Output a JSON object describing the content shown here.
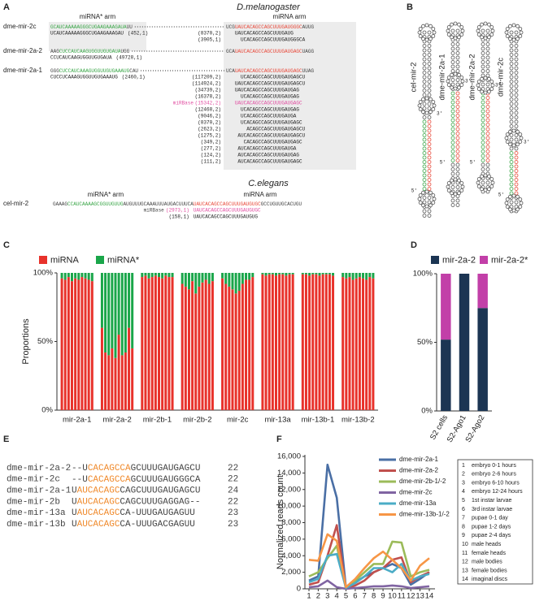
{
  "panel_a": {
    "panel_label": "A",
    "title": "D.melanogaster",
    "star_arm": "miRNA* arm",
    "mirna_arm": "miRNA arm",
    "hairpins": [
      {
        "name": "dme-mir-2c",
        "star": "GCAUCAAAAAGGGCUGAAGAAAGAUA",
        "star_tail": "UU",
        "mirna_head": "UCG",
        "mirna": "UAUCACAGCCAGCUUUGAUGGGC",
        "mirna_tail": "AUUG",
        "star_reads": [
          {
            "seq": "UCAUCAAAAAGGGCUGAAGAAAGAU",
            "count": "(452,1)"
          }
        ],
        "mirna_reads": [
          {
            "count": "(8370,2)",
            "seq": "UAUCACAGCCAGCUUUGAUG"
          },
          {
            "count": "(3905,1)",
            "seq": "UCACAGCCAGCUUUGAUGGGCA"
          }
        ]
      },
      {
        "name": "dme-mir-2a-2",
        "star_head": "AAG",
        "star": "CUCCAUCAAGUGGUUGUGAUA",
        "star_tail": "UGG",
        "mirna_head": "GCA",
        "mirna": "UAUCACAGCCAGCUUUGAUGAGC",
        "mirna_tail": "UAGG",
        "star_reads": [
          {
            "seq": "CCUCAUCAAGUGGUUGUGAUA",
            "count": "(49728,1)"
          }
        ]
      },
      {
        "name": "dme-mir-2a-1",
        "star_head": "GGG",
        "star": "CUCCAUCAAAGUGGUUGUGAAAUG",
        "star_tail": "CAU",
        "mirna_head": "UCA",
        "mirna": "UAUCACAGCCAGCUUUGAUGAGC",
        "mirna_tail": "UUAG",
        "star_reads": [
          {
            "seq": "CUCCUCAAAGUGGUUGUGAAAUG",
            "count": "(2460,1)"
          }
        ],
        "mirna_reads": [
          {
            "count": "(117209,2)",
            "seq": "UCACAGCCAGCUUUGAUGAGCU"
          },
          {
            "count": "(114924,2)",
            "seq": "UAUCACAGCCAGCUUUGAUGAGCU"
          },
          {
            "count": "(34739,2)",
            "seq": "UAUCACAGCCAGCUUUGAUGAG"
          },
          {
            "count": "(16378,2)",
            "seq": "UCACAGCCAGCUUUGAUGAG"
          },
          {
            "tag": "miRBase",
            "count": "(15342,2)",
            "seq": "UAUCACAGCCAGCUUUGAUGAGC"
          },
          {
            "count": "(12468,2)",
            "seq": "UCACAGCCAGCUUUGAUGAG"
          },
          {
            "count": "(9046,2)",
            "seq": "UCACAGCCAGCUUUGAUGA"
          },
          {
            "count": "(8370,2)",
            "seq": "UCACAGCCAGCUUUGAUGAGC"
          },
          {
            "count": "(2623,2)",
            "seq": "ACAGCCAGCUUUGAUGAGCU"
          },
          {
            "count": "(1275,2)",
            "seq": "AUCACAGCCAGCUUUGAUGAGCU"
          },
          {
            "count": "(349,2)",
            "seq": "CACAGCCAGCUUUGAUGAGC"
          },
          {
            "count": "(277,2)",
            "seq": "AUCACAGCCAGCUUUGAUGA"
          },
          {
            "count": "(124,2)",
            "seq": "AUCACAGCCAGCUUUGAUGAG"
          },
          {
            "count": "(111,2)",
            "seq": "AUCACAGCCAGCUUUGAUGAGC"
          }
        ]
      }
    ],
    "celegans": {
      "title": "C.elegans",
      "star_arm": "miRNA* arm",
      "mirna_arm": "miRNA arm",
      "name": "cel-mir-2",
      "head": "GAAAG",
      "star": "CCAUCAAAAGCGGUUGUUG",
      "loop": "AUGUUUGCAAAUUUAUGACUUUCA",
      "mirna": "UAUCACAGCCAGCUUUGAUGUGC",
      "tail": "GCCUGUUGCACUGU",
      "reads": [
        {
          "tag": "miRBase",
          "count": "(2973,1)",
          "seq": "UAUCACAGCCAGCUUUGAUGUGC"
        },
        {
          "count": "(158,1)",
          "seq": "UAUCACAGCCAGCUUUGAUGUG"
        }
      ]
    }
  },
  "panel_b": {
    "panel_label": "B",
    "structures": [
      {
        "name": "cel-mir-2",
        "five": "5'",
        "three": "3'"
      },
      {
        "name": "dme-mir-2a-1",
        "five": "5'",
        "three": "3'"
      },
      {
        "name": "dme-mir-2a-2",
        "five": "5'",
        "three": "3'"
      },
      {
        "name": "dme-mir-2c",
        "five": "5'",
        "three": "3'"
      }
    ]
  },
  "panel_e": {
    "panel_label": "E",
    "rows": [
      {
        "name": "dme-mir-2a-2",
        "lead": "--U",
        "core": "CACAGCCA",
        "tail": "GCUUUGAUGAGCU",
        "length": 22
      },
      {
        "name": "dme-mir-2c",
        "lead": "--U",
        "core": "CACAGCCA",
        "tail": "GCUUUGAUGGGCA",
        "length": 22
      },
      {
        "name": "dme-mir-2a-1",
        "lead": "U",
        "core": "AUCACAGC",
        "tail": "CAGCUUUGAUGAGCU",
        "length": 24
      },
      {
        "name": "dme-mir-2b",
        "lead": "U",
        "core": "AUCACAGC",
        "tail": "CAGCUUUGAGGAG--",
        "length": 22
      },
      {
        "name": "dme-mir-13a",
        "lead": "U",
        "core": "AUCACAGC",
        "tail": "CA-UUUGAUGAGUU",
        "length": 23
      },
      {
        "name": "dme-mir-13b",
        "lead": "U",
        "core": "AUCACAGC",
        "tail": "CA-UUUGACGAGUU",
        "length": 23
      }
    ]
  },
  "chart_data": [
    {
      "type": "stacked_bar",
      "panel_label": "C",
      "ylabel": "Proportions",
      "categories": [
        "mir-2a-1",
        "mir-2a-2",
        "mir-2b-1",
        "mir-2b-2",
        "mir-2c",
        "mir-13a",
        "mir-13b-1",
        "mir-13b-2"
      ],
      "series": [
        {
          "name": "miRNA",
          "color": "#e8322b",
          "values": [
            [
              96,
              95,
              97,
              94,
              96,
              95,
              97,
              96,
              95,
              94
            ],
            [
              60,
              42,
              40,
              45,
              38,
              55,
              40,
              42,
              60,
              45
            ],
            [
              97,
              98,
              96,
              97,
              98,
              97,
              96,
              98,
              97,
              97
            ],
            [
              92,
              90,
              88,
              94,
              85,
              90,
              93,
              95,
              92,
              94
            ],
            [
              96,
              92,
              90,
              88,
              85,
              87,
              92,
              95,
              95,
              97
            ],
            [
              99,
              98,
              99,
              99,
              98,
              99,
              99,
              98,
              99,
              99
            ],
            [
              99,
              99,
              98,
              99,
              99,
              98,
              99,
              99,
              99,
              98
            ],
            [
              97,
              96,
              97,
              95,
              96,
              97,
              96,
              95,
              97,
              96
            ]
          ]
        },
        {
          "name": "miRNA*",
          "color": "#1aa64a",
          "values": [
            [
              4,
              5,
              3,
              6,
              4,
              5,
              3,
              4,
              5,
              6
            ],
            [
              40,
              58,
              60,
              55,
              62,
              45,
              60,
              58,
              40,
              55
            ],
            [
              3,
              2,
              4,
              3,
              2,
              3,
              4,
              2,
              3,
              3
            ],
            [
              8,
              10,
              12,
              6,
              15,
              10,
              7,
              5,
              8,
              6
            ],
            [
              4,
              8,
              10,
              12,
              15,
              13,
              8,
              5,
              5,
              3
            ],
            [
              1,
              2,
              1,
              1,
              2,
              1,
              1,
              2,
              1,
              1
            ],
            [
              1,
              1,
              2,
              1,
              1,
              2,
              1,
              1,
              1,
              2
            ],
            [
              3,
              4,
              3,
              5,
              4,
              3,
              4,
              5,
              3,
              4
            ]
          ]
        }
      ],
      "ylim": [
        0,
        100
      ],
      "yticks": [
        {
          "value": 0,
          "label": "0%"
        },
        {
          "value": 50,
          "label": "50%"
        },
        {
          "value": 100,
          "label": "100%"
        }
      ]
    },
    {
      "type": "stacked_bar",
      "panel_label": "D",
      "categories": [
        "S2 cells",
        "S2-Ago1",
        "S2-Ago2"
      ],
      "series": [
        {
          "name": "mir-2a-2",
          "color": "#1c3553",
          "values": [
            52,
            100,
            75
          ]
        },
        {
          "name": "mir-2a-2*",
          "color": "#c23fa8",
          "values": [
            48,
            0,
            25
          ]
        }
      ],
      "ylim": [
        0,
        100
      ],
      "yticks": [
        {
          "value": 0,
          "label": "0%"
        },
        {
          "value": 50,
          "label": "50%"
        },
        {
          "value": 100,
          "label": "100%"
        }
      ]
    },
    {
      "type": "line",
      "panel_label": "F",
      "ylabel": "Normalized reads count",
      "x": [
        1,
        2,
        3,
        4,
        5,
        6,
        7,
        8,
        9,
        10,
        11,
        12,
        13,
        14
      ],
      "xlim": [
        1,
        14
      ],
      "xticks": [
        1,
        2,
        3,
        4,
        5,
        6,
        7,
        8,
        9,
        10,
        11,
        12,
        13,
        14
      ],
      "series": [
        {
          "name": "dme-mir-2a-1",
          "color": "#4a6fa5",
          "values": [
            1000,
            1500,
            15000,
            11000,
            100,
            800,
            1500,
            2000,
            2500,
            3000,
            2500,
            500,
            1200,
            2000
          ]
        },
        {
          "name": "dme-mir-2a-2",
          "color": "#c0504d",
          "values": [
            500,
            800,
            4000,
            7700,
            0,
            400,
            1000,
            2000,
            2500,
            3500,
            3800,
            800,
            1500,
            2000
          ]
        },
        {
          "name": "dme-mir-2b-1/-2",
          "color": "#9bbb59",
          "values": [
            1500,
            2000,
            3700,
            5200,
            0,
            1000,
            2000,
            3000,
            3000,
            5700,
            5600,
            1500,
            2000,
            2300
          ]
        },
        {
          "name": "dme-mir-2c",
          "color": "#8064a2",
          "values": [
            200,
            300,
            1000,
            200,
            0,
            100,
            200,
            300,
            300,
            400,
            300,
            100,
            200,
            300
          ]
        },
        {
          "name": "dme-mir-13a",
          "color": "#4bacc6",
          "values": [
            800,
            1200,
            4000,
            4200,
            100,
            700,
            1500,
            2500,
            2500,
            2000,
            3000,
            1000,
            1500,
            1800
          ]
        },
        {
          "name": "dme-mir-13b-1/-2",
          "color": "#f79646",
          "values": [
            3500,
            3400,
            6600,
            5800,
            200,
            1200,
            2500,
            3700,
            4500,
            3500,
            2500,
            1000,
            2800,
            3700
          ]
        }
      ],
      "ylim": [
        0,
        16000
      ],
      "yticks": [
        0,
        {
          "value": 2000,
          "label": "2,000"
        },
        {
          "value": 4000,
          "label": "4,000"
        },
        {
          "value": 6000,
          "label": "6,000"
        },
        {
          "value": 8000,
          "label": "8,000"
        },
        {
          "value": 10000,
          "label": "10,000"
        },
        {
          "value": 12000,
          "label": "12,000"
        },
        {
          "value": 14000,
          "label": "14,000"
        },
        {
          "value": 16000,
          "label": "16,000"
        }
      ],
      "stages": [
        "embryo 0-1 hours",
        "embryo 2-6 hours",
        "embryo 6-10 hours",
        "embryo 12-24 hours",
        "1st instar larvae",
        "3rd instar larvae",
        "pupae 0-1 day",
        "pupae 1-2 days",
        "pupae 2-4 days",
        "male heads",
        "female heads",
        "male bodies",
        "female bodies",
        "imaginal discs"
      ]
    }
  ]
}
